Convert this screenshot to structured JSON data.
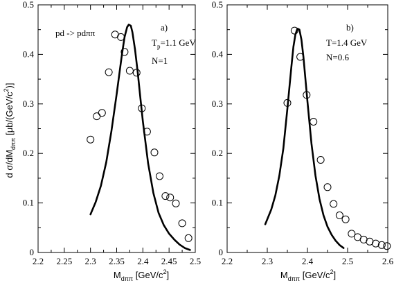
{
  "chart_data": [
    {
      "type": "line",
      "panel": "a)",
      "annotations": {
        "reaction": "pd -> pdππ",
        "energy_main": "T",
        "energy_sub": "p",
        "energy_rest": "=1.1 GeV",
        "norm": "N=1"
      },
      "xlabel": {
        "main": "M",
        "sub": "dππ",
        "rest": " [GeV/c",
        "sup": "2",
        "close": "]"
      },
      "ylabel": {
        "main": "d σ/dM",
        "sub": "dππ",
        "rest": " [μb/(GeV/c",
        "sup": "2",
        "close": ")]"
      },
      "xlim": [
        2.2,
        2.5
      ],
      "ylim": [
        0,
        0.5
      ],
      "xticks": [
        "2.2",
        "2.25",
        "2.3",
        "2.35",
        "2.4",
        "2.45",
        "2.5"
      ],
      "yticks": [
        "0",
        "0.1",
        "0.2",
        "0.3",
        "0.4",
        "0.5"
      ],
      "series": [
        {
          "kind": "line",
          "x": [
            2.3,
            2.31,
            2.32,
            2.33,
            2.34,
            2.35,
            2.355,
            2.36,
            2.365,
            2.37,
            2.373,
            2.377,
            2.38,
            2.385,
            2.39,
            2.395,
            2.4,
            2.41,
            2.42,
            2.43,
            2.44,
            2.45,
            2.46,
            2.47,
            2.48,
            2.49
          ],
          "y": [
            0.077,
            0.102,
            0.135,
            0.182,
            0.245,
            0.32,
            0.36,
            0.4,
            0.435,
            0.455,
            0.46,
            0.458,
            0.445,
            0.41,
            0.365,
            0.315,
            0.265,
            0.18,
            0.12,
            0.08,
            0.055,
            0.038,
            0.026,
            0.016,
            0.009,
            0.005
          ]
        },
        {
          "kind": "markers",
          "x": [
            2.3,
            2.312,
            2.322,
            2.335,
            2.347,
            2.358,
            2.365,
            2.375,
            2.388,
            2.398,
            2.408,
            2.422,
            2.432,
            2.443,
            2.452,
            2.463,
            2.475,
            2.487
          ],
          "y": [
            0.228,
            0.275,
            0.282,
            0.364,
            0.44,
            0.435,
            0.405,
            0.367,
            0.363,
            0.291,
            0.244,
            0.202,
            0.154,
            0.114,
            0.111,
            0.099,
            0.059,
            0.029
          ]
        }
      ]
    },
    {
      "type": "line",
      "panel": "b)",
      "annotations": {
        "energy": "T=1.4 GeV",
        "norm": "N=0.6"
      },
      "xlabel": {
        "main": "M",
        "sub": "dππ",
        "rest": " [GeV/c",
        "sup": "2",
        "close": "]"
      },
      "xlim": [
        2.2,
        2.6
      ],
      "ylim": [
        0,
        0.5
      ],
      "xticks": [
        "2.2",
        "2.3",
        "2.4",
        "2.5",
        "2.6"
      ],
      "yticks": [
        "0",
        "0.1",
        "0.2",
        "0.3",
        "0.4",
        "0.5"
      ],
      "series": [
        {
          "kind": "line",
          "x": [
            2.295,
            2.31,
            2.32,
            2.33,
            2.34,
            2.35,
            2.36,
            2.365,
            2.37,
            2.375,
            2.38,
            2.385,
            2.39,
            2.395,
            2.4,
            2.41,
            2.42,
            2.43,
            2.44,
            2.45,
            2.46,
            2.47,
            2.48,
            2.49
          ],
          "y": [
            0.057,
            0.087,
            0.115,
            0.155,
            0.21,
            0.29,
            0.375,
            0.415,
            0.44,
            0.452,
            0.45,
            0.43,
            0.395,
            0.35,
            0.305,
            0.22,
            0.155,
            0.108,
            0.075,
            0.052,
            0.036,
            0.024,
            0.015,
            0.009
          ]
        },
        {
          "kind": "markers",
          "x": [
            2.35,
            2.368,
            2.382,
            2.398,
            2.415,
            2.433,
            2.45,
            2.465,
            2.48,
            2.495,
            2.51,
            2.525,
            2.54,
            2.555,
            2.57,
            2.585,
            2.598
          ],
          "y": [
            0.302,
            0.448,
            0.395,
            0.318,
            0.264,
            0.187,
            0.132,
            0.098,
            0.075,
            0.067,
            0.038,
            0.031,
            0.026,
            0.022,
            0.018,
            0.015,
            0.013
          ]
        }
      ]
    }
  ]
}
